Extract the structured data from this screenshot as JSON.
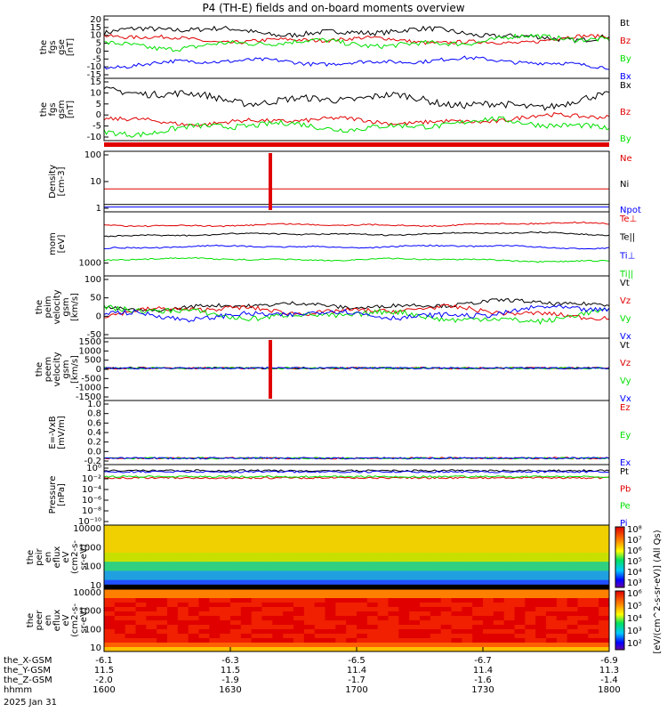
{
  "title": "P4 (TH-E) fields and on-board moments overview",
  "colors": {
    "black": "#000000",
    "red": "#e00000",
    "green": "#00e000",
    "blue": "#0000ff"
  },
  "chart_data": [
    {
      "type": "line",
      "ylabel": [
        "the",
        "fgs",
        "gse",
        "[nT]"
      ],
      "yticks": [
        "20",
        "15",
        "10",
        "5",
        "0",
        "-5",
        "-10",
        "-15"
      ],
      "ylim": [
        -16,
        24
      ],
      "series": [
        {
          "name": "Bt",
          "color": "black",
          "base": 13,
          "amp": 4
        },
        {
          "name": "Bz",
          "color": "red",
          "base": 9,
          "amp": 3
        },
        {
          "name": "By",
          "color": "green",
          "base": 7,
          "amp": 4
        },
        {
          "name": "Bx",
          "color": "blue",
          "base": -6,
          "amp": 3
        }
      ]
    },
    {
      "type": "line",
      "ylabel": [
        "the",
        "fgs",
        "gsm",
        "[nT]"
      ],
      "yticks": [
        "15",
        "10",
        "5",
        "0",
        "-5",
        "-10"
      ],
      "ylim": [
        -16,
        20
      ],
      "series": [
        {
          "name": "Bx",
          "color": "black",
          "base": 8,
          "amp": 5
        },
        {
          "name": "Bz",
          "color": "red",
          "base": -4,
          "amp": 3
        },
        {
          "name": "By",
          "color": "green",
          "base": -8,
          "amp": 4
        }
      ]
    },
    {
      "type": "line",
      "ylabel": [
        "Density",
        "[cm-3]"
      ],
      "yticks": [
        "100",
        "10",
        "1"
      ],
      "ylog": true,
      "ylim": [
        0.6,
        150
      ],
      "series": [
        {
          "name": "Ne",
          "color": "red",
          "base": 3
        },
        {
          "name": "Ni",
          "color": "black",
          "base": 0.9
        },
        {
          "name": "Npot",
          "color": "blue",
          "base": 0.7
        }
      ]
    },
    {
      "type": "line",
      "ylabel": [
        "mom",
        "[eV]"
      ],
      "yticks": [
        "1000"
      ],
      "series": [
        {
          "name": "Te⊥",
          "color": "red"
        },
        {
          "name": "Te||",
          "color": "black"
        },
        {
          "name": "Ti⊥",
          "color": "blue"
        },
        {
          "name": "Ti||",
          "color": "green"
        }
      ]
    },
    {
      "type": "line",
      "ylabel": [
        "the",
        "peim",
        "velocity",
        "gsm",
        "[km/s]"
      ],
      "yticks": [
        "100",
        "50",
        "0",
        "-50"
      ],
      "ylim": [
        -70,
        130
      ],
      "series": [
        {
          "name": "Vt",
          "color": "black",
          "base": 35,
          "amp": 15
        },
        {
          "name": "Vz",
          "color": "red",
          "base": 15,
          "amp": 18
        },
        {
          "name": "Vy",
          "color": "green",
          "base": 5,
          "amp": 22
        },
        {
          "name": "Vx",
          "color": "blue",
          "base": 10,
          "amp": 20
        }
      ]
    },
    {
      "type": "line",
      "ylabel": [
        "the",
        "peem",
        "velocity",
        "gsm",
        "[km/s]"
      ],
      "yticks": [
        "1500",
        "1000",
        "500",
        "0",
        "-500",
        "-1000",
        "-1500"
      ],
      "ylim": [
        -1600,
        1700
      ],
      "series": [
        {
          "name": "Vt",
          "color": "black"
        },
        {
          "name": "Vz",
          "color": "red"
        },
        {
          "name": "Vy",
          "color": "green"
        },
        {
          "name": "Vx",
          "color": "blue"
        }
      ]
    },
    {
      "type": "line",
      "ylabel": [
        "E=-VxB",
        "[mV/m]"
      ],
      "yticks": [
        "1.0",
        "0.8",
        "0.6",
        "0.4",
        "0.2",
        "0.0",
        "-0.2"
      ],
      "ylim": [
        -0.2,
        1.0
      ],
      "series": [
        {
          "name": "Ez",
          "color": "red"
        },
        {
          "name": "Ey",
          "color": "green"
        },
        {
          "name": "Ex",
          "color": "blue"
        }
      ]
    },
    {
      "type": "line",
      "ylabel": [
        "Pressure",
        "[nPa]"
      ],
      "yticks": [
        "10⁰",
        "10⁻²",
        "10⁻⁴",
        "10⁻⁶",
        "10⁻⁸",
        "10⁻¹⁰"
      ],
      "series": [
        {
          "name": "Pt",
          "color": "black"
        },
        {
          "name": "Pb",
          "color": "red"
        },
        {
          "name": "Pe",
          "color": "green"
        },
        {
          "name": "Pi",
          "color": "blue"
        }
      ]
    },
    {
      "type": "heatmap",
      "ylabel": [
        "the",
        "peir",
        "en",
        "eflux",
        "eV",
        "(cm2-s-",
        "sr-eV)"
      ],
      "yticks": [
        "10000",
        "1000",
        "100",
        "10"
      ]
    },
    {
      "type": "heatmap",
      "ylabel": [
        "the",
        "peer",
        "en",
        "eflux",
        "eV",
        "(cm2-s-",
        "sr-eV)"
      ],
      "yticks": [
        "10000",
        "1000",
        "100",
        "10"
      ]
    }
  ],
  "colorbar": {
    "label": "[eV/(cm^2-s-sr-eV)] (All Qs)",
    "ticks_upper": [
      "10⁸",
      "10⁷",
      "10⁶",
      "10⁵",
      "10⁴",
      "10³"
    ],
    "ticks_lower": [
      "10⁶",
      "10⁵",
      "10⁴",
      "10³",
      "10²"
    ]
  },
  "time_axis": {
    "rows": [
      {
        "label": "the_X-GSM",
        "values": [
          "-6.1",
          "-6.3",
          "-6.5",
          "-6.7",
          "-6.9"
        ]
      },
      {
        "label": "the_Y-GSM",
        "values": [
          "11.5",
          "11.5",
          "11.4",
          "11.4",
          "11.3"
        ]
      },
      {
        "label": "the_Z-GSM",
        "values": [
          "-2.0",
          "-1.9",
          "-1.7",
          "-1.6",
          "-1.4"
        ]
      },
      {
        "label": "hhmm",
        "values": [
          "1600",
          "1630",
          "1700",
          "1730",
          "1800"
        ]
      }
    ],
    "date": "2025 Jan 31"
  }
}
